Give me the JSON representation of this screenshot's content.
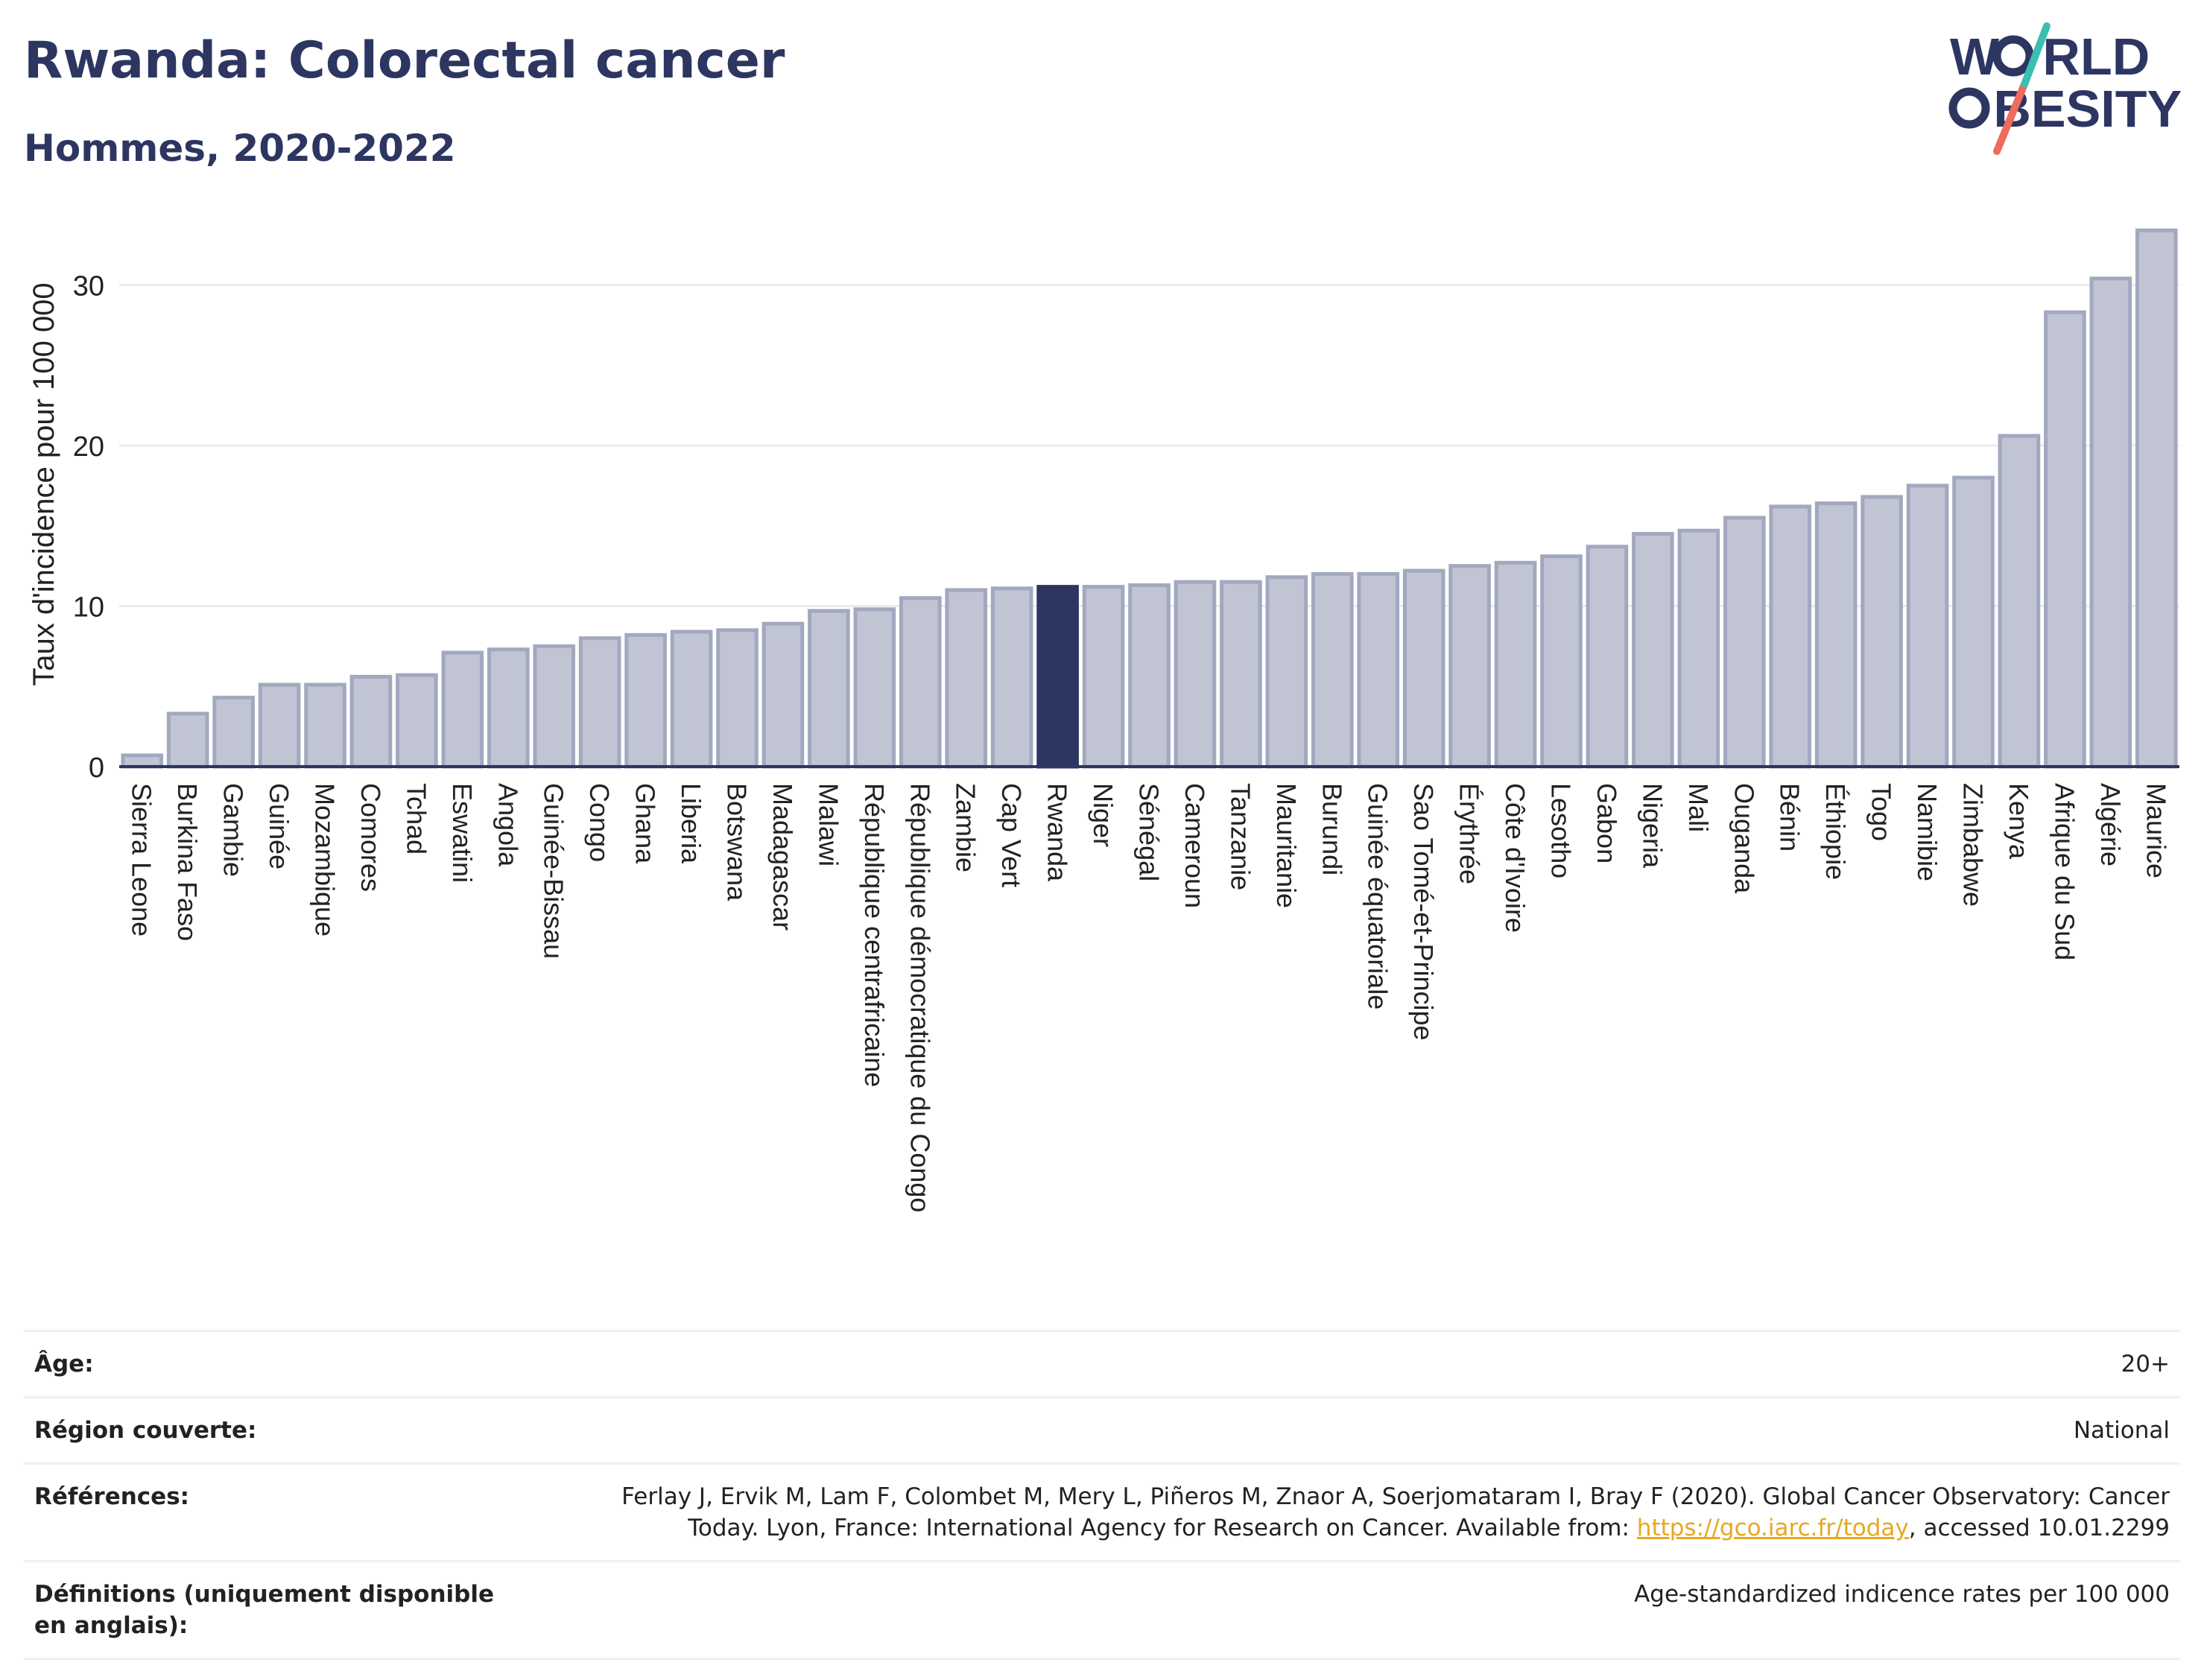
{
  "header": {
    "title": "Rwanda: Colorectal cancer",
    "subtitle": "Hommes, 2020-2022"
  },
  "logo": {
    "line1": "W   RLD",
    "line2": "   BESITY",
    "colors": {
      "navy": "#2d3561",
      "teal": "#3bbfb2",
      "coral": "#ef6b5b"
    }
  },
  "colors": {
    "bar": "#c0c4d3",
    "bar_stroke": "#a2a8be",
    "highlight": "#2d3561",
    "grid": "#e9ebf1",
    "axis": "#2d3561"
  },
  "chart_data": {
    "type": "bar",
    "ylabel": "Taux d'incidence pour 100 000",
    "ylim": [
      0,
      35
    ],
    "yticks": [
      0,
      10,
      20,
      30
    ],
    "grid": true,
    "highlight": "Rwanda",
    "categories": [
      "Sierra Leone",
      "Burkina Faso",
      "Gambie",
      "Guinée",
      "Mozambique",
      "Comores",
      "Tchad",
      "Eswatini",
      "Angola",
      "Guinée-Bissau",
      "Congo",
      "Ghana",
      "Liberia",
      "Botswana",
      "Madagascar",
      "Malawi",
      "République centrafricaine",
      "République démocratique du Congo",
      "Zambie",
      "Cap Vert",
      "Rwanda",
      "Niger",
      "Sénégal",
      "Cameroun",
      "Tanzanie",
      "Mauritanie",
      "Burundi",
      "Guinée équatoriale",
      "Sao Tomé-et-Principe",
      "Érythrée",
      "Côte d'Ivoire",
      "Lesotho",
      "Gabon",
      "Nigeria",
      "Mali",
      "Ouganda",
      "Bénin",
      "Éthiopie",
      "Togo",
      "Namibie",
      "Zimbabwe",
      "Kenya",
      "Afrique du Sud",
      "Algérie",
      "Maurice"
    ],
    "values": [
      0.7,
      3.3,
      4.3,
      5.1,
      5.1,
      5.6,
      5.7,
      7.1,
      7.3,
      7.5,
      8.0,
      8.2,
      8.4,
      8.5,
      8.9,
      9.7,
      9.8,
      10.5,
      11.0,
      11.1,
      11.2,
      11.2,
      11.3,
      11.5,
      11.5,
      11.8,
      12.0,
      12.0,
      12.2,
      12.5,
      12.7,
      13.1,
      13.7,
      14.5,
      14.7,
      15.5,
      16.2,
      16.4,
      16.8,
      17.5,
      18.0,
      20.6,
      28.3,
      30.4,
      33.4
    ]
  },
  "metadata": {
    "age_label": "Âge:",
    "age_value": "20+",
    "region_label": "Région couverte:",
    "region_value": "National",
    "references_label": "Références:",
    "references_line1": "Ferlay J, Ervik M, Lam F, Colombet M, Mery L, Piñeros M, Znaor A, Soerjomataram I, Bray F (2020). Global Cancer Observatory: Cancer",
    "references_line2_pre": "Today. Lyon, France: International Agency for Research on Cancer. Available from: ",
    "references_link": "https://gco.iarc.fr/today",
    "references_line2_post": ", accessed 10.01.2299",
    "definitions_label": "Définitions (uniquement disponible en anglais):",
    "definitions_value": "Age-standardized indicence rates per 100 000"
  }
}
